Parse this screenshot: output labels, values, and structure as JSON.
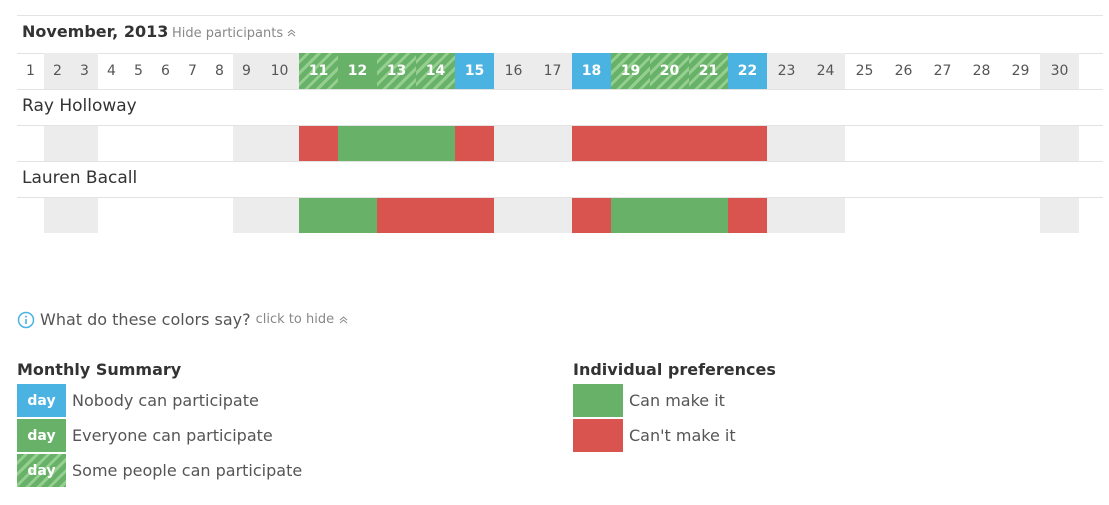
{
  "header": {
    "month": "November, 2013",
    "toggle": "Hide participants"
  },
  "days": [
    {
      "label": 1,
      "weekend": false,
      "summary": null
    },
    {
      "label": 2,
      "weekend": true,
      "summary": null
    },
    {
      "label": 3,
      "weekend": true,
      "summary": null
    },
    {
      "label": 4,
      "weekend": false,
      "summary": null
    },
    {
      "label": 5,
      "weekend": false,
      "summary": null
    },
    {
      "label": 6,
      "weekend": false,
      "summary": null
    },
    {
      "label": 7,
      "weekend": false,
      "summary": null
    },
    {
      "label": 8,
      "weekend": false,
      "summary": null
    },
    {
      "label": 9,
      "weekend": true,
      "summary": null
    },
    {
      "label": 10,
      "weekend": true,
      "summary": null
    },
    {
      "label": 11,
      "weekend": false,
      "summary": "some"
    },
    {
      "label": 12,
      "weekend": false,
      "summary": "everyone"
    },
    {
      "label": 13,
      "weekend": false,
      "summary": "some"
    },
    {
      "label": 14,
      "weekend": false,
      "summary": "some"
    },
    {
      "label": 15,
      "weekend": false,
      "summary": "nobody"
    },
    {
      "label": 16,
      "weekend": true,
      "summary": null
    },
    {
      "label": 17,
      "weekend": true,
      "summary": null
    },
    {
      "label": 18,
      "weekend": false,
      "summary": "nobody"
    },
    {
      "label": 19,
      "weekend": false,
      "summary": "some"
    },
    {
      "label": 20,
      "weekend": false,
      "summary": "some"
    },
    {
      "label": 21,
      "weekend": false,
      "summary": "some"
    },
    {
      "label": 22,
      "weekend": false,
      "summary": "nobody"
    },
    {
      "label": 23,
      "weekend": true,
      "summary": null
    },
    {
      "label": 24,
      "weekend": true,
      "summary": null
    },
    {
      "label": 25,
      "weekend": false,
      "summary": null
    },
    {
      "label": 26,
      "weekend": false,
      "summary": null
    },
    {
      "label": 27,
      "weekend": false,
      "summary": null
    },
    {
      "label": 28,
      "weekend": false,
      "summary": null
    },
    {
      "label": 29,
      "weekend": false,
      "summary": null
    },
    {
      "label": 30,
      "weekend": true,
      "summary": null
    }
  ],
  "participants": [
    {
      "name": "Ray Holloway",
      "availability": [
        null,
        null,
        null,
        null,
        null,
        null,
        null,
        null,
        null,
        null,
        "no",
        "yes",
        "yes",
        "yes",
        "no",
        null,
        null,
        "no",
        "no",
        "no",
        "no",
        "no",
        null,
        null,
        null,
        null,
        null,
        null,
        null,
        null
      ]
    },
    {
      "name": "Lauren Bacall",
      "availability": [
        null,
        null,
        null,
        null,
        null,
        null,
        null,
        null,
        null,
        null,
        "yes",
        "yes",
        "no",
        "no",
        "no",
        null,
        null,
        "no",
        "yes",
        "yes",
        "yes",
        "no",
        null,
        null,
        null,
        null,
        null,
        null,
        null,
        null
      ]
    }
  ],
  "legend": {
    "question": "What do these colors say?",
    "toggle": "click to hide",
    "monthly": {
      "title": "Monthly Summary",
      "items": [
        {
          "swatch": "day",
          "label": "Nobody can participate",
          "status": "nobody"
        },
        {
          "swatch": "day",
          "label": "Everyone can participate",
          "status": "everyone"
        },
        {
          "swatch": "day",
          "label": "Some people can participate",
          "status": "some"
        }
      ]
    },
    "individual": {
      "title": "Individual preferences",
      "items": [
        {
          "label": "Can make it",
          "status": "yes"
        },
        {
          "label": "Can't make it",
          "status": "no"
        }
      ]
    }
  }
}
